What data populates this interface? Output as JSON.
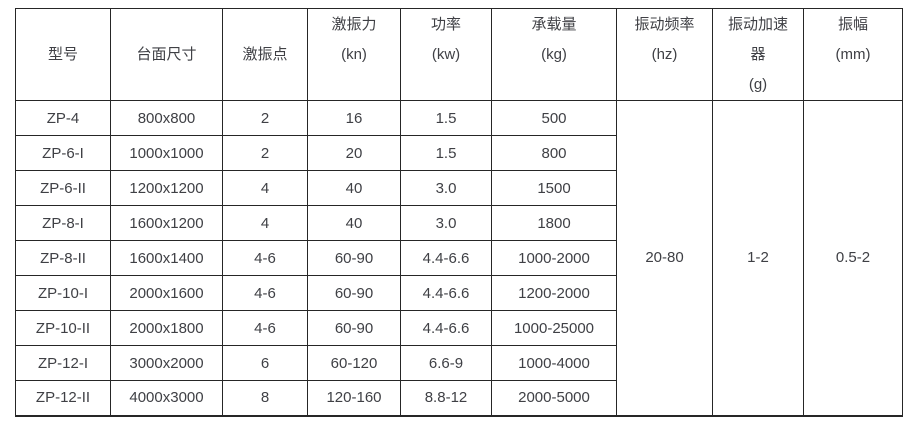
{
  "page": {
    "background_color": "#ffffff",
    "border_color": "#262626",
    "text_color": "#3f4045"
  },
  "table": {
    "columns": [
      {
        "label": "型号"
      },
      {
        "label": "台面尺寸"
      },
      {
        "label": "激振点"
      },
      {
        "label": "激振力",
        "unit": "(kn)"
      },
      {
        "label": "功率",
        "unit": "(kw)"
      },
      {
        "label": "承载量",
        "unit": "(kg)"
      },
      {
        "label": "振动频率",
        "unit": "(hz)"
      },
      {
        "label": "振动加速",
        "label2": "器",
        "unit": "(g)"
      },
      {
        "label": "振幅",
        "unit": "(mm)"
      }
    ],
    "rows": [
      {
        "model": "ZP-4",
        "size": "800x800",
        "points": "2",
        "force": "16",
        "power": "1.5",
        "capacity": "500"
      },
      {
        "model": "ZP-6-I",
        "size": "1000x1000",
        "points": "2",
        "force": "20",
        "power": "1.5",
        "capacity": "800"
      },
      {
        "model": "ZP-6-II",
        "size": "1200x1200",
        "points": "4",
        "force": "40",
        "power": "3.0",
        "capacity": "1500"
      },
      {
        "model": "ZP-8-I",
        "size": "1600x1200",
        "points": "4",
        "force": "40",
        "power": "3.0",
        "capacity": "1800"
      },
      {
        "model": "ZP-8-II",
        "size": "1600x1400",
        "points": "4-6",
        "force": "60-90",
        "power": "4.4-6.6",
        "capacity": "1000-2000"
      },
      {
        "model": "ZP-10-I",
        "size": "2000x1600",
        "points": "4-6",
        "force": "60-90",
        "power": "4.4-6.6",
        "capacity": "1200-2000"
      },
      {
        "model": "ZP-10-II",
        "size": "2000x1800",
        "points": "4-6",
        "force": "60-90",
        "power": "4.4-6.6",
        "capacity": "1000-25000"
      },
      {
        "model": "ZP-12-I",
        "size": "3000x2000",
        "points": "6",
        "force": "60-120",
        "power": "6.6-9",
        "capacity": "1000-4000"
      },
      {
        "model": "ZP-12-II",
        "size": "4000x3000",
        "points": "8",
        "force": "120-160",
        "power": "8.8-12",
        "capacity": "2000-5000"
      }
    ],
    "merged": {
      "frequency": "20-80",
      "accelerator": "1-2",
      "amplitude": "0.5-2"
    }
  }
}
